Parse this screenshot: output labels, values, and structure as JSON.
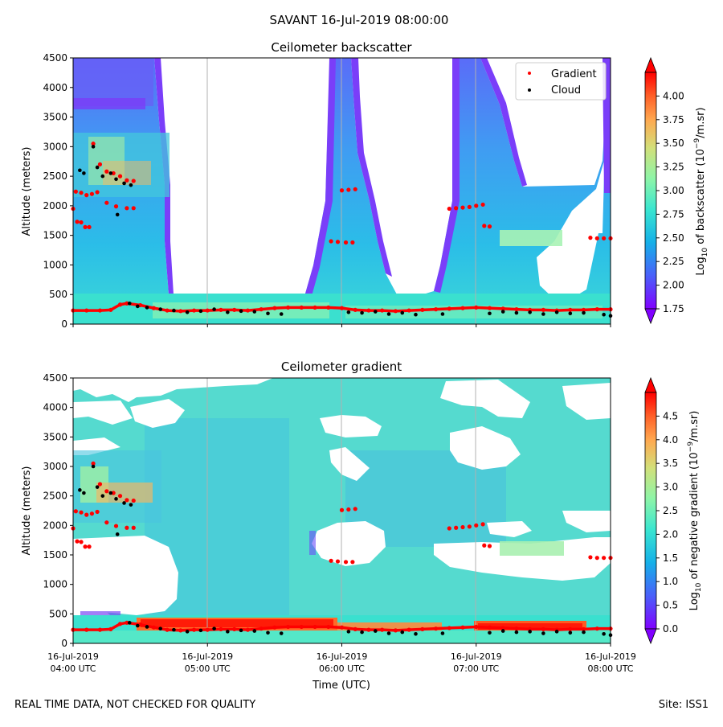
{
  "figure": {
    "title": "SAVANT 16-Jul-2019 08:00:00",
    "footer_left": "REAL TIME DATA, NOT CHECKED FOR QUALITY",
    "footer_right": "Site: ISS1",
    "xlabel": "Time (UTC)",
    "x_tick_dates": [
      "16-Jul-2019",
      "16-Jul-2019",
      "16-Jul-2019",
      "16-Jul-2019",
      "16-Jul-2019"
    ],
    "x_tick_times": [
      "04:00 UTC",
      "05:00 UTC",
      "06:00 UTC",
      "07:00 UTC",
      "08:00 UTC"
    ]
  },
  "chart_data": [
    {
      "type": "heatmap",
      "title": "Ceilometer backscatter",
      "ylabel": "Altitude (meters)",
      "xlim_hours_utc": [
        4,
        8
      ],
      "ylim": [
        0,
        4500
      ],
      "y_ticks": [
        0,
        500,
        1000,
        1500,
        2000,
        2500,
        3000,
        3500,
        4000,
        4500
      ],
      "grid": "vertical lines at x ticks",
      "legend": {
        "placement": "top-right",
        "entries": [
          {
            "name": "Gradient",
            "color": "#ff0000",
            "marker": "dot"
          },
          {
            "name": "Cloud",
            "color": "#000000",
            "marker": "dot"
          }
        ]
      },
      "colorbar": {
        "label_prefix": "Log",
        "label_sub": "10",
        "label_mid": " of backscatter (10",
        "label_sup": "−9",
        "label_suffix": "/m.sr)",
        "range": [
          1.75,
          4.25
        ],
        "ticks": [
          "1.75",
          "2.00",
          "2.25",
          "2.50",
          "2.75",
          "3.00",
          "3.25",
          "3.50",
          "3.75",
          "4.00"
        ],
        "colormap": "rainbow",
        "extend": "both"
      },
      "gradient_points": [
        {
          "x": 4.0,
          "y": 1950
        },
        {
          "x": 4.03,
          "y": 1730
        },
        {
          "x": 4.06,
          "y": 1720
        },
        {
          "x": 4.09,
          "y": 1640
        },
        {
          "x": 4.12,
          "y": 1640
        },
        {
          "x": 4.02,
          "y": 2240
        },
        {
          "x": 4.06,
          "y": 2220
        },
        {
          "x": 4.1,
          "y": 2180
        },
        {
          "x": 4.14,
          "y": 2200
        },
        {
          "x": 4.18,
          "y": 2230
        },
        {
          "x": 4.25,
          "y": 2050
        },
        {
          "x": 4.32,
          "y": 1990
        },
        {
          "x": 4.4,
          "y": 1960
        },
        {
          "x": 4.45,
          "y": 1960
        },
        {
          "x": 4.15,
          "y": 3050
        },
        {
          "x": 4.2,
          "y": 2700
        },
        {
          "x": 4.25,
          "y": 2580
        },
        {
          "x": 4.3,
          "y": 2550
        },
        {
          "x": 4.35,
          "y": 2500
        },
        {
          "x": 4.4,
          "y": 2430
        },
        {
          "x": 4.45,
          "y": 2420
        },
        {
          "x": 4.0,
          "y": 230
        },
        {
          "x": 4.1,
          "y": 230
        },
        {
          "x": 4.2,
          "y": 230
        },
        {
          "x": 4.28,
          "y": 240
        },
        {
          "x": 4.35,
          "y": 330
        },
        {
          "x": 4.4,
          "y": 350
        },
        {
          "x": 4.5,
          "y": 320
        },
        {
          "x": 4.6,
          "y": 270
        },
        {
          "x": 4.7,
          "y": 230
        },
        {
          "x": 4.8,
          "y": 220
        },
        {
          "x": 4.9,
          "y": 230
        },
        {
          "x": 5.0,
          "y": 230
        },
        {
          "x": 5.1,
          "y": 240
        },
        {
          "x": 5.2,
          "y": 240
        },
        {
          "x": 5.3,
          "y": 230
        },
        {
          "x": 5.4,
          "y": 250
        },
        {
          "x": 5.5,
          "y": 270
        },
        {
          "x": 5.6,
          "y": 280
        },
        {
          "x": 5.7,
          "y": 280
        },
        {
          "x": 5.8,
          "y": 280
        },
        {
          "x": 5.9,
          "y": 280
        },
        {
          "x": 6.0,
          "y": 270
        },
        {
          "x": 6.1,
          "y": 240
        },
        {
          "x": 6.2,
          "y": 230
        },
        {
          "x": 6.3,
          "y": 230
        },
        {
          "x": 6.4,
          "y": 220
        },
        {
          "x": 6.5,
          "y": 230
        },
        {
          "x": 6.6,
          "y": 240
        },
        {
          "x": 6.7,
          "y": 250
        },
        {
          "x": 6.8,
          "y": 260
        },
        {
          "x": 6.9,
          "y": 270
        },
        {
          "x": 7.0,
          "y": 280
        },
        {
          "x": 7.1,
          "y": 270
        },
        {
          "x": 7.2,
          "y": 260
        },
        {
          "x": 7.3,
          "y": 250
        },
        {
          "x": 7.4,
          "y": 240
        },
        {
          "x": 7.5,
          "y": 240
        },
        {
          "x": 7.6,
          "y": 230
        },
        {
          "x": 7.7,
          "y": 240
        },
        {
          "x": 7.8,
          "y": 240
        },
        {
          "x": 7.9,
          "y": 250
        },
        {
          "x": 8.0,
          "y": 250
        },
        {
          "x": 6.0,
          "y": 2260
        },
        {
          "x": 6.05,
          "y": 2270
        },
        {
          "x": 6.1,
          "y": 2280
        },
        {
          "x": 5.92,
          "y": 1400
        },
        {
          "x": 5.97,
          "y": 1390
        },
        {
          "x": 6.03,
          "y": 1380
        },
        {
          "x": 6.08,
          "y": 1380
        },
        {
          "x": 6.8,
          "y": 1950
        },
        {
          "x": 6.85,
          "y": 1960
        },
        {
          "x": 6.9,
          "y": 1970
        },
        {
          "x": 6.95,
          "y": 1980
        },
        {
          "x": 7.0,
          "y": 2000
        },
        {
          "x": 7.05,
          "y": 2020
        },
        {
          "x": 7.06,
          "y": 1660
        },
        {
          "x": 7.1,
          "y": 1650
        },
        {
          "x": 7.85,
          "y": 1460
        },
        {
          "x": 7.9,
          "y": 1450
        },
        {
          "x": 7.95,
          "y": 1450
        },
        {
          "x": 8.0,
          "y": 1450
        }
      ],
      "cloud_points": [
        {
          "x": 4.05,
          "y": 2600
        },
        {
          "x": 4.08,
          "y": 2550
        },
        {
          "x": 4.15,
          "y": 3000
        },
        {
          "x": 4.18,
          "y": 2650
        },
        {
          "x": 4.22,
          "y": 2500
        },
        {
          "x": 4.28,
          "y": 2550
        },
        {
          "x": 4.32,
          "y": 2450
        },
        {
          "x": 4.38,
          "y": 2380
        },
        {
          "x": 4.43,
          "y": 2350
        },
        {
          "x": 4.33,
          "y": 1850
        },
        {
          "x": 4.42,
          "y": 350
        },
        {
          "x": 4.48,
          "y": 300
        },
        {
          "x": 4.55,
          "y": 280
        },
        {
          "x": 4.65,
          "y": 250
        },
        {
          "x": 4.75,
          "y": 230
        },
        {
          "x": 4.85,
          "y": 200
        },
        {
          "x": 4.95,
          "y": 220
        },
        {
          "x": 5.05,
          "y": 250
        },
        {
          "x": 5.15,
          "y": 200
        },
        {
          "x": 5.25,
          "y": 220
        },
        {
          "x": 5.35,
          "y": 210
        },
        {
          "x": 5.45,
          "y": 180
        },
        {
          "x": 5.55,
          "y": 170
        },
        {
          "x": 6.05,
          "y": 200
        },
        {
          "x": 6.15,
          "y": 190
        },
        {
          "x": 6.25,
          "y": 210
        },
        {
          "x": 6.35,
          "y": 170
        },
        {
          "x": 6.45,
          "y": 190
        },
        {
          "x": 6.55,
          "y": 160
        },
        {
          "x": 6.75,
          "y": 170
        },
        {
          "x": 7.1,
          "y": 180
        },
        {
          "x": 7.2,
          "y": 210
        },
        {
          "x": 7.3,
          "y": 190
        },
        {
          "x": 7.4,
          "y": 200
        },
        {
          "x": 7.5,
          "y": 170
        },
        {
          "x": 7.6,
          "y": 200
        },
        {
          "x": 7.7,
          "y": 180
        },
        {
          "x": 7.8,
          "y": 190
        },
        {
          "x": 7.95,
          "y": 160
        },
        {
          "x": 8.0,
          "y": 140
        }
      ]
    },
    {
      "type": "heatmap",
      "title": "Ceilometer gradient",
      "ylabel": "Altitude (meters)",
      "xlim_hours_utc": [
        4,
        8
      ],
      "ylim": [
        0,
        4500
      ],
      "y_ticks": [
        0,
        500,
        1000,
        1500,
        2000,
        2500,
        3000,
        3500,
        4000,
        4500
      ],
      "grid": "vertical lines at x ticks",
      "colorbar": {
        "label_prefix": "Log",
        "label_sub": "10",
        "label_mid": " of negative gradient (10",
        "label_sup": "−9",
        "label_suffix": "/m.sr)",
        "range": [
          0.0,
          5.0
        ],
        "ticks": [
          "0.0",
          "0.5",
          "1.0",
          "1.5",
          "2.0",
          "2.5",
          "3.0",
          "3.5",
          "4.0",
          "4.5"
        ],
        "colormap": "rainbow",
        "extend": "both"
      }
    }
  ]
}
